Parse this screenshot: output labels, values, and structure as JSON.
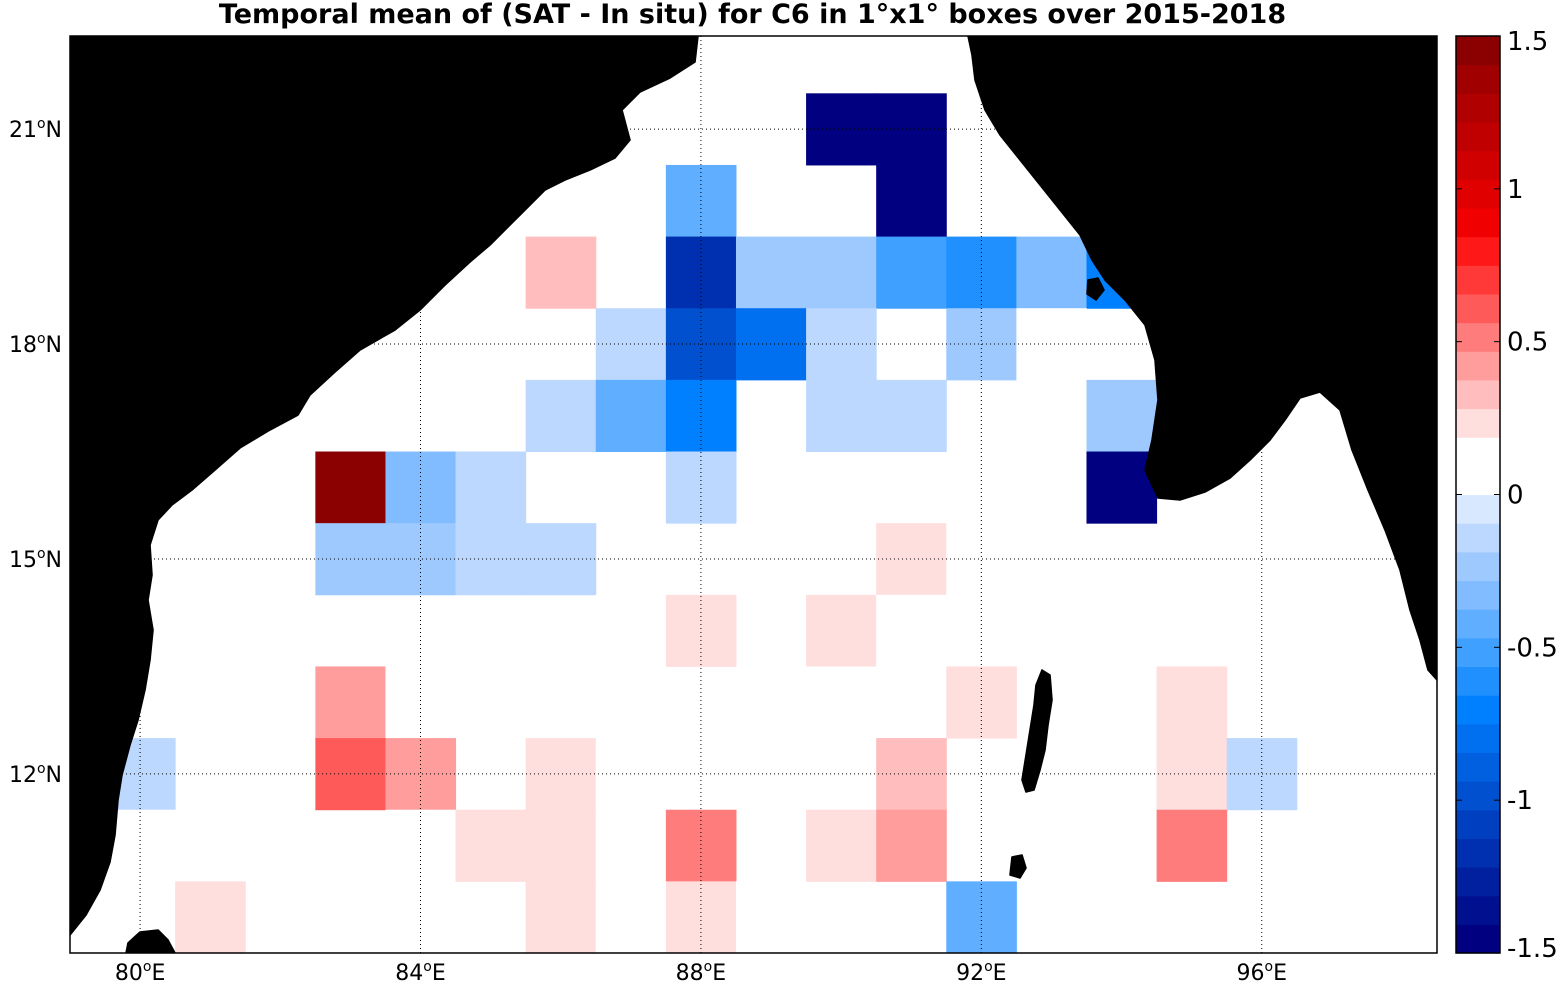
{
  "title": "Temporal mean of (SAT - In situ) for C6 in 1°x1° boxes over 2015-2018",
  "map": {
    "land_color": "#808080",
    "ocean_color": "#ffffff",
    "extent": {
      "lon_min": 79,
      "lon_max": 98.5,
      "lat_min": 9.5,
      "lat_max": 22.3
    },
    "lon_ticks": [
      {
        "value": 80,
        "deg": "80",
        "suffix": "E"
      },
      {
        "value": 84,
        "deg": "84",
        "suffix": "E"
      },
      {
        "value": 88,
        "deg": "88",
        "suffix": "E"
      },
      {
        "value": 92,
        "deg": "92",
        "suffix": "E"
      },
      {
        "value": 96,
        "deg": "96",
        "suffix": "E"
      }
    ],
    "lat_ticks": [
      {
        "value": 21,
        "deg": "21",
        "suffix": "N"
      },
      {
        "value": 18,
        "deg": "18",
        "suffix": "N"
      },
      {
        "value": 15,
        "deg": "15",
        "suffix": "N"
      },
      {
        "value": 12,
        "deg": "12",
        "suffix": "N"
      }
    ],
    "gridlines": "dotted"
  },
  "colorbar": {
    "vmin": -1.5,
    "vmax": 1.5,
    "tick_labels": [
      "1.5",
      "1",
      "0.5",
      "0",
      "-0.5",
      "-1",
      "-1.5"
    ],
    "tick_values": [
      1.5,
      1,
      0.5,
      0,
      -0.5,
      -1,
      -1.5
    ],
    "colors": [
      "#000080",
      "#00108f",
      "#0020a0",
      "#0030b0",
      "#0040c0",
      "#0050d0",
      "#0060e0",
      "#0070f0",
      "#0080ff",
      "#2090ff",
      "#40a0ff",
      "#60aeff",
      "#80bcff",
      "#9ec9ff",
      "#bcd8ff",
      "#d8e8ff",
      "#ffffff",
      "#ffffff",
      "#ffdede",
      "#ffbdbd",
      "#ff9c9c",
      "#ff7c7c",
      "#ff5a5a",
      "#ff3838",
      "#ff1818",
      "#f00000",
      "#e00000",
      "#d00000",
      "#c00000",
      "#b00000",
      "#a00000",
      "#8b0000"
    ]
  },
  "cells": [
    {
      "lon": 90,
      "lat": 21,
      "value": -1.5
    },
    {
      "lon": 91,
      "lat": 21,
      "value": -1.5
    },
    {
      "lon": 91,
      "lat": 20,
      "value": -1.5
    },
    {
      "lon": 88,
      "lat": 20,
      "value": -0.4
    },
    {
      "lon": 86,
      "lat": 19,
      "value": 0.35
    },
    {
      "lon": 88,
      "lat": 19,
      "value": -1.2
    },
    {
      "lon": 89,
      "lat": 19,
      "value": -0.2
    },
    {
      "lon": 90,
      "lat": 19,
      "value": -0.2
    },
    {
      "lon": 91,
      "lat": 19,
      "value": -0.5
    },
    {
      "lon": 92,
      "lat": 19,
      "value": -0.65
    },
    {
      "lon": 93,
      "lat": 19,
      "value": -0.3
    },
    {
      "lon": 94,
      "lat": 19,
      "value": -0.75
    },
    {
      "lon": 87,
      "lat": 18,
      "value": -0.1
    },
    {
      "lon": 88,
      "lat": 18,
      "value": -1.0
    },
    {
      "lon": 89,
      "lat": 18,
      "value": -0.8
    },
    {
      "lon": 90,
      "lat": 18,
      "value": -0.1
    },
    {
      "lon": 92,
      "lat": 18,
      "value": -0.2
    },
    {
      "lon": 93,
      "lat": 18,
      "value": 0.1
    },
    {
      "lon": 86,
      "lat": 17,
      "value": -0.1
    },
    {
      "lon": 87,
      "lat": 17,
      "value": -0.4
    },
    {
      "lon": 88,
      "lat": 17,
      "value": -0.7
    },
    {
      "lon": 90,
      "lat": 17,
      "value": -0.1
    },
    {
      "lon": 91,
      "lat": 17,
      "value": -0.1
    },
    {
      "lon": 94,
      "lat": 17,
      "value": -0.2
    },
    {
      "lon": 83,
      "lat": 16,
      "value": 1.5
    },
    {
      "lon": 84,
      "lat": 16,
      "value": -0.3
    },
    {
      "lon": 85,
      "lat": 16,
      "value": -0.1
    },
    {
      "lon": 88,
      "lat": 16,
      "value": -0.1
    },
    {
      "lon": 92,
      "lat": 16,
      "value": 0.1
    },
    {
      "lon": 94,
      "lat": 16,
      "value": -1.5
    },
    {
      "lon": 82,
      "lat": 15,
      "value": 0.1
    },
    {
      "lon": 83,
      "lat": 15,
      "value": -0.2
    },
    {
      "lon": 84,
      "lat": 15,
      "value": -0.2
    },
    {
      "lon": 85,
      "lat": 15,
      "value": -0.1
    },
    {
      "lon": 86,
      "lat": 15,
      "value": -0.1
    },
    {
      "lon": 89,
      "lat": 15,
      "value": 0.1
    },
    {
      "lon": 91,
      "lat": 15,
      "value": 0.25
    },
    {
      "lon": 92,
      "lat": 15,
      "value": 0.1
    },
    {
      "lon": 87,
      "lat": 14,
      "value": 0.1
    },
    {
      "lon": 88,
      "lat": 14,
      "value": 0.25
    },
    {
      "lon": 90,
      "lat": 14,
      "value": 0.25
    },
    {
      "lon": 91,
      "lat": 14,
      "value": 0.1
    },
    {
      "lon": 83,
      "lat": 13,
      "value": 0.45
    },
    {
      "lon": 84,
      "lat": 13,
      "value": 0.1
    },
    {
      "lon": 87,
      "lat": 13,
      "value": 0.1
    },
    {
      "lon": 90,
      "lat": 13,
      "value": 0.1
    },
    {
      "lon": 92,
      "lat": 13,
      "value": 0.25
    },
    {
      "lon": 95,
      "lat": 13,
      "value": 0.25
    },
    {
      "lon": 80,
      "lat": 12,
      "value": -0.1
    },
    {
      "lon": 83,
      "lat": 12,
      "value": 0.65
    },
    {
      "lon": 84,
      "lat": 12,
      "value": 0.45
    },
    {
      "lon": 86,
      "lat": 12,
      "value": 0.25
    },
    {
      "lon": 87,
      "lat": 12,
      "value": 0.1
    },
    {
      "lon": 88,
      "lat": 12,
      "value": 0.1
    },
    {
      "lon": 90,
      "lat": 12,
      "value": 0.1
    },
    {
      "lon": 91,
      "lat": 12,
      "value": 0.3
    },
    {
      "lon": 95,
      "lat": 12,
      "value": 0.25
    },
    {
      "lon": 96,
      "lat": 12,
      "value": -0.1
    },
    {
      "lon": 80,
      "lat": 11,
      "value": 0.1
    },
    {
      "lon": 84,
      "lat": 11,
      "value": 0.1
    },
    {
      "lon": 85,
      "lat": 11,
      "value": 0.25
    },
    {
      "lon": 86,
      "lat": 11,
      "value": 0.25
    },
    {
      "lon": 87,
      "lat": 11,
      "value": 0.1
    },
    {
      "lon": 88,
      "lat": 11,
      "value": 0.55
    },
    {
      "lon": 90,
      "lat": 11,
      "value": 0.25
    },
    {
      "lon": 91,
      "lat": 11,
      "value": 0.4
    },
    {
      "lon": 95,
      "lat": 11,
      "value": 0.55
    },
    {
      "lon": 81,
      "lat": 10,
      "value": 0.25
    },
    {
      "lon": 86,
      "lat": 10,
      "value": 0.25
    },
    {
      "lon": 87,
      "lat": 10,
      "value": 0.1
    },
    {
      "lon": 88,
      "lat": 10,
      "value": 0.25
    },
    {
      "lon": 89,
      "lat": 10,
      "value": 0.1
    },
    {
      "lon": 92,
      "lat": 10,
      "value": -0.4
    }
  ]
}
